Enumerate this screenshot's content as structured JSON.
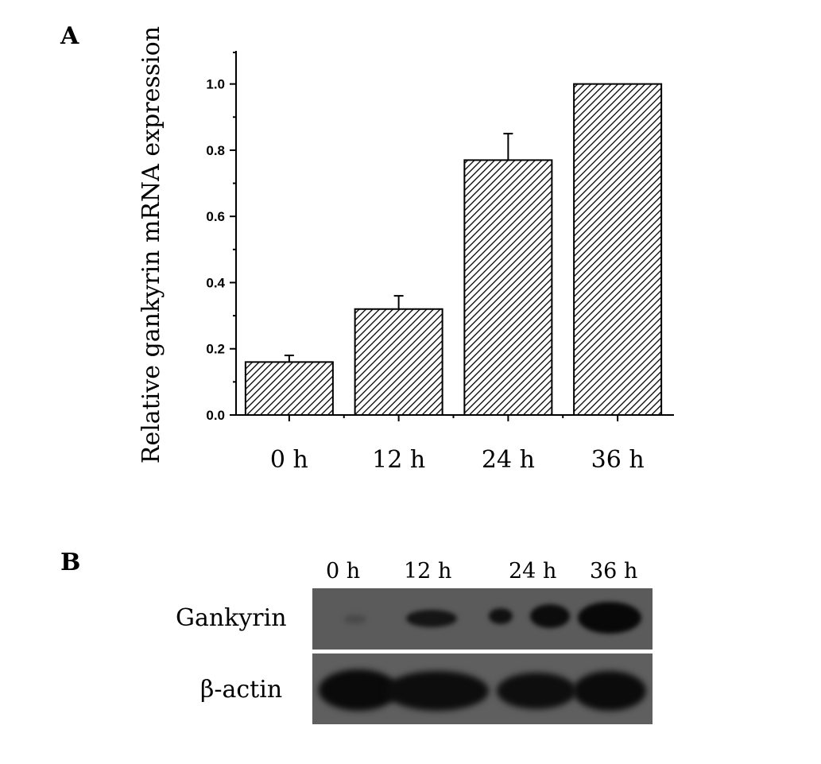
{
  "panel_a": {
    "letter": "A"
  },
  "panel_b": {
    "letter": "B",
    "lane_labels": [
      "0 h",
      "12 h",
      "24 h",
      "36 h"
    ],
    "row_labels": [
      "Gankyrin",
      "β-actin"
    ]
  },
  "chart_data": {
    "type": "bar",
    "categories": [
      "0 h",
      "12 h",
      "24 h",
      "36 h"
    ],
    "values": [
      0.16,
      0.32,
      0.77,
      1.0
    ],
    "errors": [
      0.02,
      0.04,
      0.08,
      0.0
    ],
    "title": "",
    "xlabel": "",
    "ylabel": "Relative gankyrin mRNA expression",
    "ylim": [
      0,
      1.1
    ],
    "yticks": [
      "0.0",
      "0.2",
      "0.4",
      "0.6",
      "0.8",
      "1.0"
    ],
    "bar_fill": "hatched",
    "bar_color": "#000000",
    "grid": false
  }
}
